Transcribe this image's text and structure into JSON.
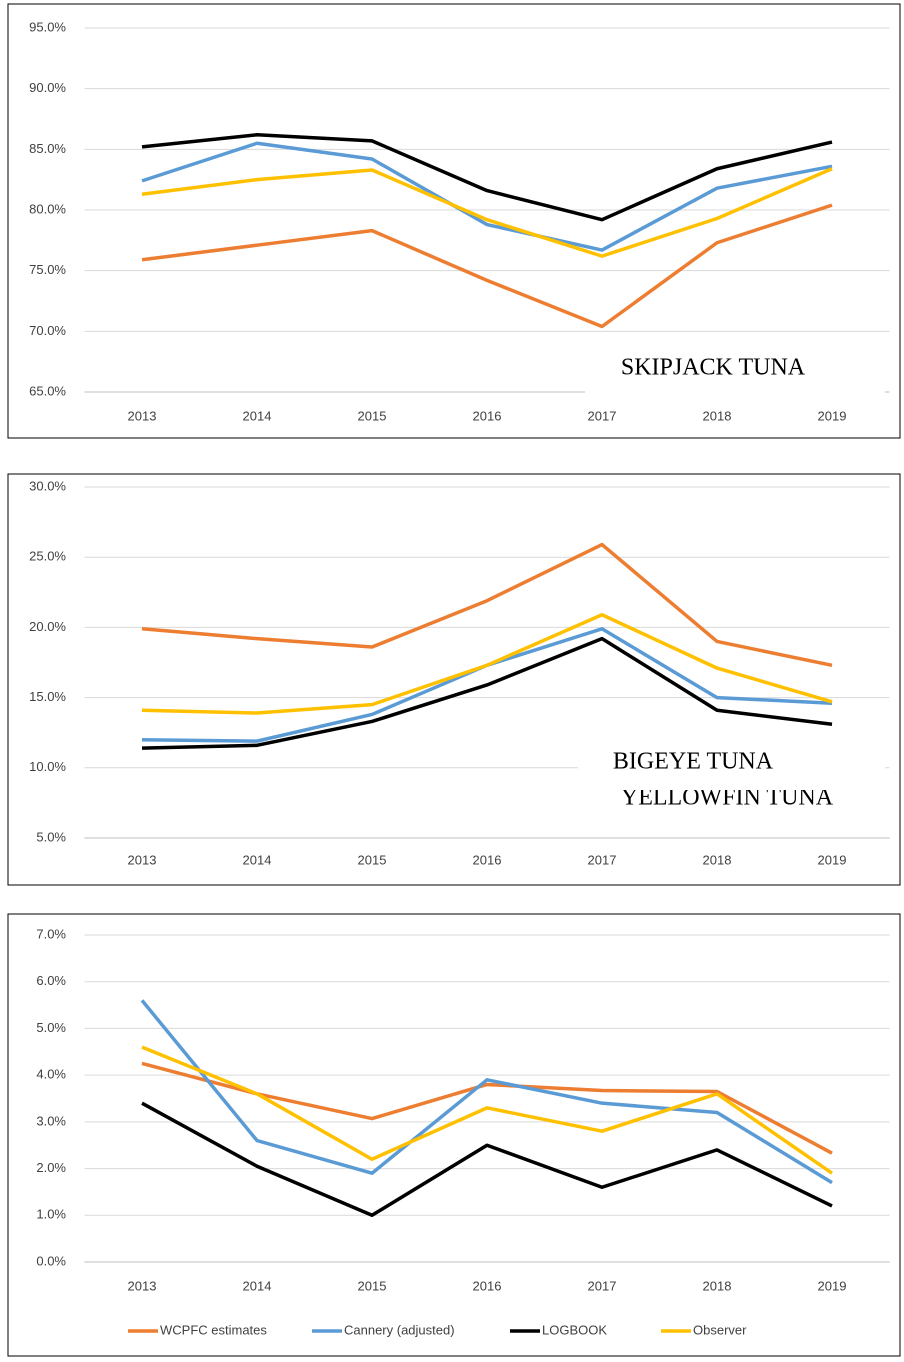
{
  "chart_data": [
    {
      "type": "line",
      "annotation": "SKIPJACK TUNA",
      "categories": [
        "2013",
        "2014",
        "2015",
        "2016",
        "2017",
        "2018",
        "2019"
      ],
      "ylim": [
        65,
        95
      ],
      "yticks": [
        {
          "value": 65,
          "label": "65.0%"
        },
        {
          "value": 70,
          "label": "70.0%"
        },
        {
          "value": 75,
          "label": "75.0%"
        },
        {
          "value": 80,
          "label": "80.0%"
        },
        {
          "value": 85,
          "label": "85.0%"
        },
        {
          "value": 90,
          "label": "90.0%"
        },
        {
          "value": 95,
          "label": "95.0%"
        }
      ],
      "grid": true,
      "series": [
        {
          "color": "#ed7d31",
          "values": [
            75.9,
            77.1,
            78.3,
            74.2,
            70.4,
            77.3,
            80.4
          ]
        },
        {
          "color": "#5b9bd5",
          "values": [
            82.4,
            85.5,
            84.2,
            78.8,
            76.7,
            81.8,
            83.6
          ]
        },
        {
          "color": "#000000",
          "values": [
            85.2,
            86.2,
            85.7,
            81.6,
            79.2,
            83.4,
            85.6
          ]
        },
        {
          "color": "#ffc000",
          "values": [
            81.3,
            82.5,
            83.3,
            79.2,
            76.2,
            79.3,
            83.4
          ]
        }
      ]
    },
    {
      "type": "line",
      "annotation": "YELLOWFIN TUNA",
      "categories": [
        "2013",
        "2014",
        "2015",
        "2016",
        "2017",
        "2018",
        "2019"
      ],
      "ylim": [
        5,
        30
      ],
      "yticks": [
        {
          "value": 5,
          "label": "5.0%"
        },
        {
          "value": 10,
          "label": "10.0%"
        },
        {
          "value": 15,
          "label": "15.0%"
        },
        {
          "value": 20,
          "label": "20.0%"
        },
        {
          "value": 25,
          "label": "25.0%"
        },
        {
          "value": 30,
          "label": "30.0%"
        }
      ],
      "grid": true,
      "series": [
        {
          "color": "#ed7d31",
          "values": [
            19.9,
            19.2,
            18.6,
            21.9,
            25.9,
            19.0,
            17.3
          ]
        },
        {
          "color": "#5b9bd5",
          "values": [
            12.0,
            11.9,
            13.8,
            17.3,
            19.9,
            15.0,
            14.6
          ]
        },
        {
          "color": "#000000",
          "values": [
            11.4,
            11.6,
            13.3,
            15.9,
            19.2,
            14.1,
            13.1
          ]
        },
        {
          "color": "#ffc000",
          "values": [
            14.1,
            13.9,
            14.5,
            17.3,
            20.9,
            17.1,
            14.7
          ]
        }
      ]
    },
    {
      "type": "line",
      "annotation": "BIGEYE TUNA",
      "categories": [
        "2013",
        "2014",
        "2015",
        "2016",
        "2017",
        "2018",
        "2019"
      ],
      "ylim": [
        0,
        7
      ],
      "yticks": [
        {
          "value": 0,
          "label": "0.0%"
        },
        {
          "value": 1,
          "label": "1.0%"
        },
        {
          "value": 2,
          "label": "2.0%"
        },
        {
          "value": 3,
          "label": "3.0%"
        },
        {
          "value": 4,
          "label": "4.0%"
        },
        {
          "value": 5,
          "label": "5.0%"
        },
        {
          "value": 6,
          "label": "6.0%"
        },
        {
          "value": 7,
          "label": "7.0%"
        }
      ],
      "grid": true,
      "legend": "bottom",
      "series": [
        {
          "name": "WCPFC estimates",
          "color": "#ed7d31",
          "values": [
            4.25,
            3.6,
            3.07,
            3.8,
            3.67,
            3.65,
            2.33
          ]
        },
        {
          "name": "Cannery (adjusted)",
          "color": "#5b9bd5",
          "values": [
            5.6,
            2.6,
            1.9,
            3.9,
            3.4,
            3.2,
            1.7
          ]
        },
        {
          "name": "LOGBOOK",
          "color": "#000000",
          "values": [
            3.4,
            2.05,
            1.0,
            2.5,
            1.6,
            2.4,
            1.2
          ]
        },
        {
          "name": "Observer",
          "color": "#ffc000",
          "values": [
            4.6,
            3.6,
            2.2,
            3.3,
            2.8,
            3.6,
            1.9
          ]
        }
      ]
    }
  ]
}
